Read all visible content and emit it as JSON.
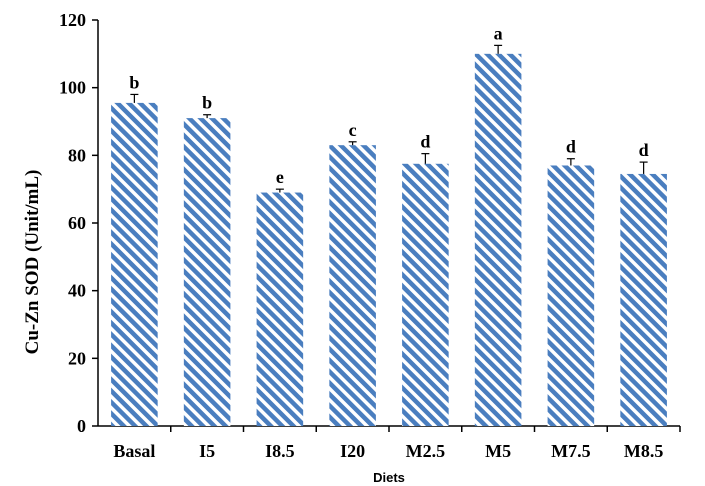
{
  "chart_data": {
    "type": "bar",
    "categories": [
      "Basal",
      "I5",
      "I8.5",
      "I20",
      "M2.5",
      "M5",
      "M7.5",
      "M8.5"
    ],
    "values": [
      95.5,
      91,
      69,
      83,
      77.5,
      110,
      77,
      74.5
    ],
    "errors": [
      2.5,
      1,
      1,
      1,
      3,
      2.5,
      2,
      3.5
    ],
    "significance": [
      "b",
      "b",
      "e",
      "c",
      "d",
      "a",
      "d",
      "d"
    ],
    "title": "",
    "xlabel": "Diets",
    "ylabel": "Cu-Zn SOD (Unit/mL)",
    "ylim": [
      0,
      120
    ],
    "yticks": [
      0,
      20,
      40,
      60,
      80,
      100,
      120
    ],
    "grid": false,
    "bar_pattern": "diagonal-stripes",
    "colors": {
      "bar_stripe": "#4a7ebf",
      "bar_bg": "#ffffff",
      "axis": "#000000"
    }
  }
}
